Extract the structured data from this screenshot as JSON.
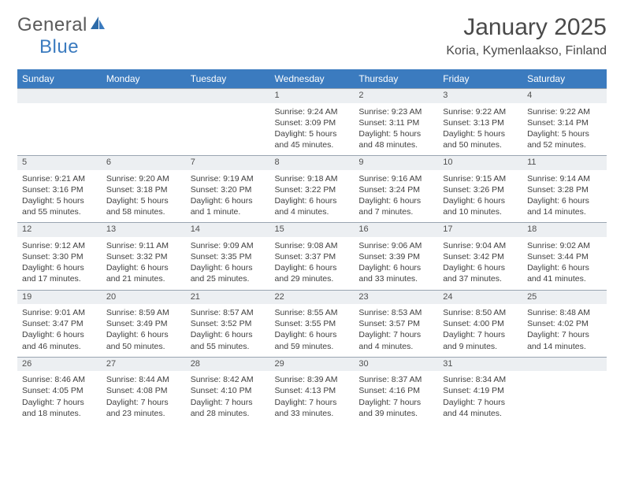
{
  "brand": {
    "name_part1": "General",
    "name_part2": "Blue"
  },
  "title": "January 2025",
  "location": "Koria, Kymenlaakso, Finland",
  "colors": {
    "header_bg": "#3b7bbf",
    "header_text": "#ffffff",
    "daynum_bg": "#eceff2",
    "cell_border": "#9aa5b1",
    "body_text": "#404040",
    "title_text": "#4a4a4a"
  },
  "typography": {
    "title_fontsize": 30,
    "location_fontsize": 16,
    "dayhead_fontsize": 12,
    "cell_fontsize": 10.5
  },
  "day_headers": [
    "Sunday",
    "Monday",
    "Tuesday",
    "Wednesday",
    "Thursday",
    "Friday",
    "Saturday"
  ],
  "weeks": [
    {
      "nums": [
        "",
        "",
        "",
        "1",
        "2",
        "3",
        "4"
      ],
      "details": [
        "",
        "",
        "",
        "Sunrise: 9:24 AM\nSunset: 3:09 PM\nDaylight: 5 hours and 45 minutes.",
        "Sunrise: 9:23 AM\nSunset: 3:11 PM\nDaylight: 5 hours and 48 minutes.",
        "Sunrise: 9:22 AM\nSunset: 3:13 PM\nDaylight: 5 hours and 50 minutes.",
        "Sunrise: 9:22 AM\nSunset: 3:14 PM\nDaylight: 5 hours and 52 minutes."
      ]
    },
    {
      "nums": [
        "5",
        "6",
        "7",
        "8",
        "9",
        "10",
        "11"
      ],
      "details": [
        "Sunrise: 9:21 AM\nSunset: 3:16 PM\nDaylight: 5 hours and 55 minutes.",
        "Sunrise: 9:20 AM\nSunset: 3:18 PM\nDaylight: 5 hours and 58 minutes.",
        "Sunrise: 9:19 AM\nSunset: 3:20 PM\nDaylight: 6 hours and 1 minute.",
        "Sunrise: 9:18 AM\nSunset: 3:22 PM\nDaylight: 6 hours and 4 minutes.",
        "Sunrise: 9:16 AM\nSunset: 3:24 PM\nDaylight: 6 hours and 7 minutes.",
        "Sunrise: 9:15 AM\nSunset: 3:26 PM\nDaylight: 6 hours and 10 minutes.",
        "Sunrise: 9:14 AM\nSunset: 3:28 PM\nDaylight: 6 hours and 14 minutes."
      ]
    },
    {
      "nums": [
        "12",
        "13",
        "14",
        "15",
        "16",
        "17",
        "18"
      ],
      "details": [
        "Sunrise: 9:12 AM\nSunset: 3:30 PM\nDaylight: 6 hours and 17 minutes.",
        "Sunrise: 9:11 AM\nSunset: 3:32 PM\nDaylight: 6 hours and 21 minutes.",
        "Sunrise: 9:09 AM\nSunset: 3:35 PM\nDaylight: 6 hours and 25 minutes.",
        "Sunrise: 9:08 AM\nSunset: 3:37 PM\nDaylight: 6 hours and 29 minutes.",
        "Sunrise: 9:06 AM\nSunset: 3:39 PM\nDaylight: 6 hours and 33 minutes.",
        "Sunrise: 9:04 AM\nSunset: 3:42 PM\nDaylight: 6 hours and 37 minutes.",
        "Sunrise: 9:02 AM\nSunset: 3:44 PM\nDaylight: 6 hours and 41 minutes."
      ]
    },
    {
      "nums": [
        "19",
        "20",
        "21",
        "22",
        "23",
        "24",
        "25"
      ],
      "details": [
        "Sunrise: 9:01 AM\nSunset: 3:47 PM\nDaylight: 6 hours and 46 minutes.",
        "Sunrise: 8:59 AM\nSunset: 3:49 PM\nDaylight: 6 hours and 50 minutes.",
        "Sunrise: 8:57 AM\nSunset: 3:52 PM\nDaylight: 6 hours and 55 minutes.",
        "Sunrise: 8:55 AM\nSunset: 3:55 PM\nDaylight: 6 hours and 59 minutes.",
        "Sunrise: 8:53 AM\nSunset: 3:57 PM\nDaylight: 7 hours and 4 minutes.",
        "Sunrise: 8:50 AM\nSunset: 4:00 PM\nDaylight: 7 hours and 9 minutes.",
        "Sunrise: 8:48 AM\nSunset: 4:02 PM\nDaylight: 7 hours and 14 minutes."
      ]
    },
    {
      "nums": [
        "26",
        "27",
        "28",
        "29",
        "30",
        "31",
        ""
      ],
      "details": [
        "Sunrise: 8:46 AM\nSunset: 4:05 PM\nDaylight: 7 hours and 18 minutes.",
        "Sunrise: 8:44 AM\nSunset: 4:08 PM\nDaylight: 7 hours and 23 minutes.",
        "Sunrise: 8:42 AM\nSunset: 4:10 PM\nDaylight: 7 hours and 28 minutes.",
        "Sunrise: 8:39 AM\nSunset: 4:13 PM\nDaylight: 7 hours and 33 minutes.",
        "Sunrise: 8:37 AM\nSunset: 4:16 PM\nDaylight: 7 hours and 39 minutes.",
        "Sunrise: 8:34 AM\nSunset: 4:19 PM\nDaylight: 7 hours and 44 minutes.",
        ""
      ]
    }
  ]
}
